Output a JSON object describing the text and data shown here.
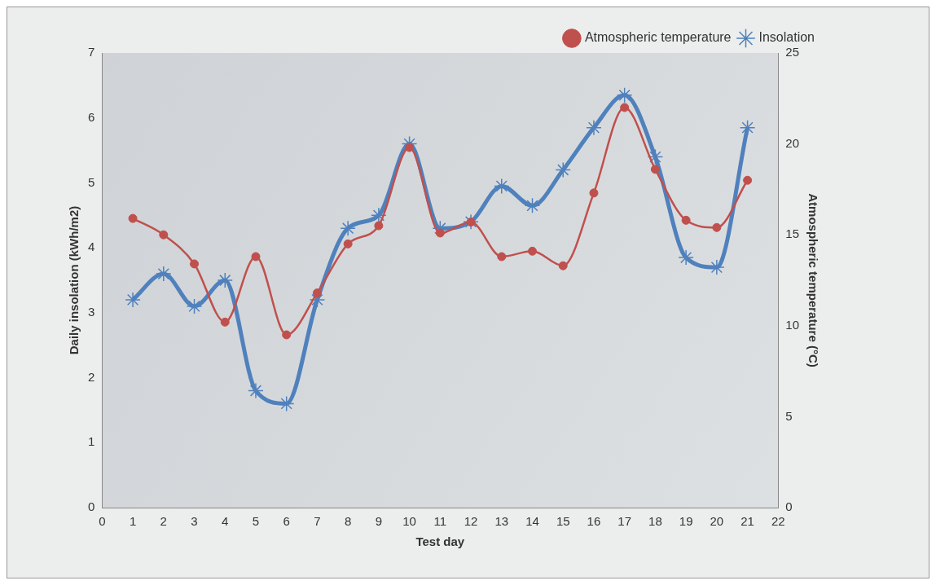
{
  "chart_data": {
    "type": "line",
    "xlabel": "Test day",
    "ylabel": "Daily insolation (kWh/m2)",
    "y2label": "Atmospheric temperature (°C)",
    "x": [
      1,
      2,
      3,
      4,
      5,
      6,
      7,
      8,
      9,
      10,
      11,
      12,
      13,
      14,
      15,
      16,
      17,
      18,
      19,
      20,
      21
    ],
    "series": [
      {
        "name": "Insolation",
        "color": "#4f81bd",
        "marker": "cross",
        "values": [
          3.2,
          3.6,
          3.1,
          3.5,
          1.8,
          1.6,
          3.2,
          4.3,
          4.5,
          5.6,
          4.3,
          4.4,
          4.95,
          4.65,
          5.2,
          5.85,
          6.35,
          5.4,
          3.85,
          3.7,
          5.85
        ]
      },
      {
        "name": "Atmospheric temperature",
        "color": "#c0504d",
        "marker": "circle",
        "axis": "y2",
        "values": [
          15.9,
          15.0,
          13.4,
          10.2,
          13.8,
          9.5,
          11.8,
          14.5,
          15.5,
          19.8,
          15.1,
          15.7,
          13.8,
          14.1,
          13.3,
          17.3,
          22.0,
          18.6,
          15.8,
          15.4,
          18.0
        ]
      }
    ],
    "xlim": [
      0,
      22
    ],
    "xticks": [
      0,
      1,
      2,
      3,
      4,
      5,
      6,
      7,
      8,
      9,
      10,
      11,
      12,
      13,
      14,
      15,
      16,
      17,
      18,
      19,
      20,
      21,
      22
    ],
    "ylim": [
      0,
      7
    ],
    "yticks": [
      0,
      1,
      2,
      3,
      4,
      5,
      6,
      7
    ],
    "y2lim": [
      0,
      25
    ],
    "y2ticks": [
      0,
      5,
      10,
      15,
      20,
      25
    ],
    "grid": false,
    "legend": "top right",
    "line_style": "solid"
  }
}
